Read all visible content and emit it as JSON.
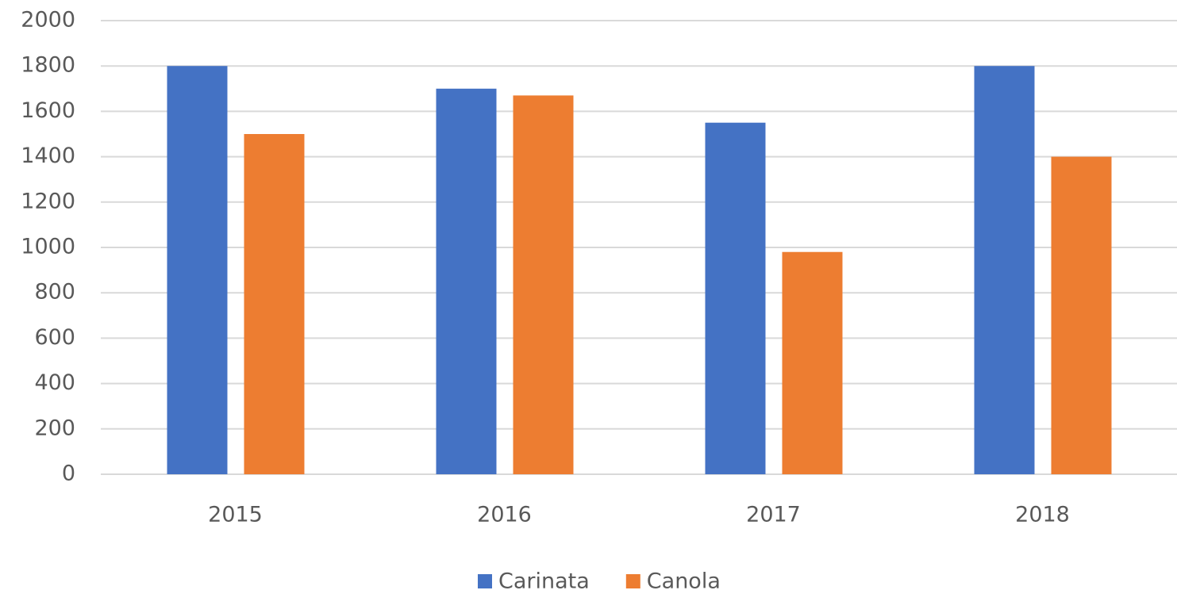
{
  "chart_data": {
    "type": "bar",
    "categories": [
      "2015",
      "2016",
      "2017",
      "2018"
    ],
    "series": [
      {
        "name": "Carinata",
        "color": "#4472c4",
        "values": [
          1800,
          1700,
          1550,
          1800
        ]
      },
      {
        "name": "Canola",
        "color": "#ed7d31",
        "values": [
          1500,
          1670,
          980,
          1400
        ]
      }
    ],
    "ylim": [
      0,
      2000
    ],
    "yticks": [
      0,
      200,
      400,
      600,
      800,
      1000,
      1200,
      1400,
      1600,
      1800,
      2000
    ],
    "grid": true,
    "legend": "bottom"
  }
}
